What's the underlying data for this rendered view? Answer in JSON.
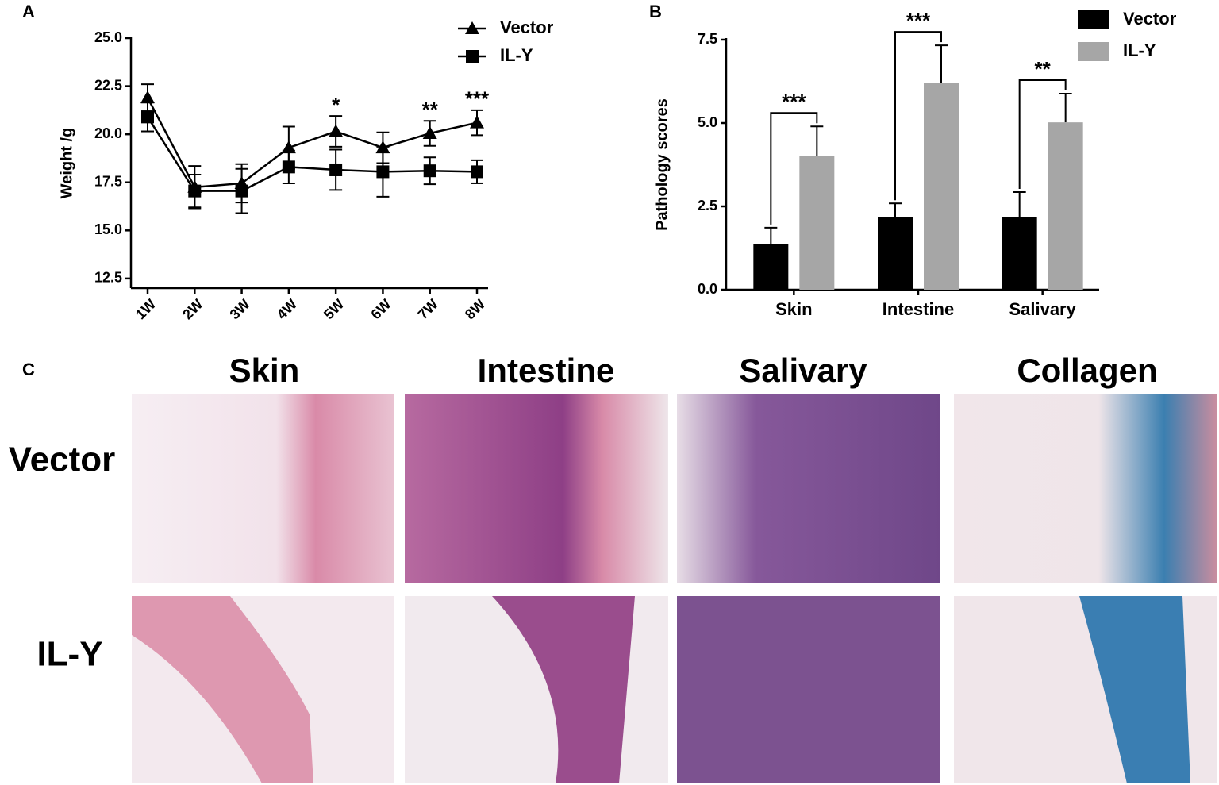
{
  "panel_labels": [
    "A",
    "B",
    "C"
  ],
  "chart_data": [
    {
      "type": "line",
      "ylabel": "Weight /g",
      "categories": [
        "1W",
        "2W",
        "3W",
        "4W",
        "5W",
        "6W",
        "7W",
        "8W"
      ],
      "ylim": [
        12,
        25
      ],
      "yticks": [
        {
          "value": 12.5,
          "label": "12.5"
        },
        {
          "value": 15,
          "label": "15.0"
        },
        {
          "value": 17.5,
          "label": "17.5"
        },
        {
          "value": 20,
          "label": "20.0"
        },
        {
          "value": 22.5,
          "label": "22.5"
        },
        {
          "value": 25,
          "label": "25.0"
        }
      ],
      "series": [
        {
          "name": "Vector",
          "color": "#000000",
          "marker": "triangle",
          "values": [
            21.9,
            17.25,
            17.45,
            19.3,
            20.15,
            19.3,
            20.05,
            20.6
          ],
          "errors": [
            0.7,
            1.1,
            1.0,
            1.1,
            0.8,
            0.8,
            0.65,
            0.65
          ]
        },
        {
          "name": "IL-Y",
          "color": "#000000",
          "marker": "square",
          "values": [
            20.9,
            17.05,
            17.05,
            18.3,
            18.15,
            18.05,
            18.1,
            18.05
          ],
          "errors": [
            0.75,
            0.85,
            1.15,
            0.85,
            1.05,
            1.3,
            0.7,
            0.6
          ]
        }
      ],
      "annotations": [
        {
          "text": "*",
          "category": "5W"
        },
        {
          "text": "**",
          "category": "7W"
        },
        {
          "text": "***",
          "category": "8W"
        }
      ]
    },
    {
      "type": "bar",
      "ylabel": "Pathology scores",
      "categories": [
        "Skin",
        "Intestine",
        "Salivary"
      ],
      "ylim": [
        0,
        7.5
      ],
      "yticks": [
        {
          "value": 0,
          "label": "0.0"
        },
        {
          "value": 2.5,
          "label": "2.5"
        },
        {
          "value": 5,
          "label": "5.0"
        },
        {
          "value": 7.5,
          "label": "7.5"
        }
      ],
      "series": [
        {
          "name": "Vector",
          "color": "#000000",
          "values": [
            1.38,
            2.19,
            2.19
          ],
          "errors": [
            0.48,
            0.4,
            0.74
          ]
        },
        {
          "name": "IL-Y",
          "color": "#a6a6a6",
          "values": [
            4.02,
            6.21,
            5.02
          ],
          "errors": [
            0.88,
            1.12,
            0.86
          ]
        }
      ],
      "annotations": [
        {
          "text": "***",
          "category": "Skin"
        },
        {
          "text": "***",
          "category": "Intestine"
        },
        {
          "text": "**",
          "category": "Salivary"
        }
      ]
    }
  ],
  "panel_c": {
    "columns": [
      "Skin",
      "Intestine",
      "Salivary",
      "Collagen"
    ],
    "rows": [
      "Vector",
      "IL-Y"
    ]
  }
}
